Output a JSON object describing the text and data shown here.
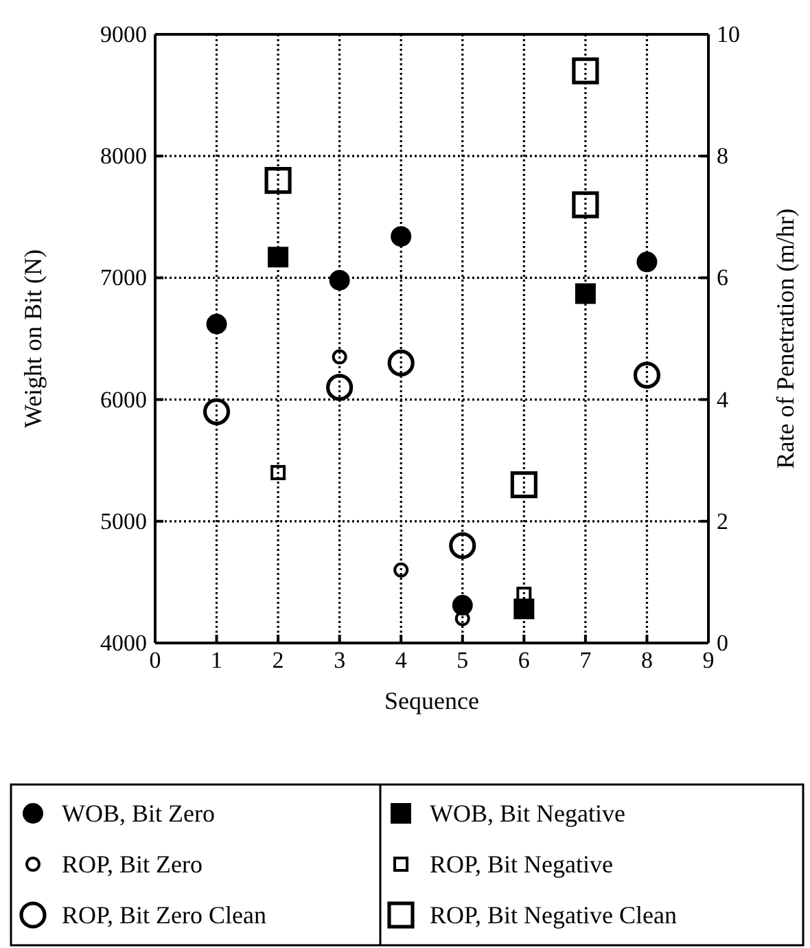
{
  "chart_data": {
    "type": "scatter",
    "xlabel": "Sequence",
    "ylabel": "Weight on Bit (N)",
    "y2label": "Rate of Penetration (m/hr)",
    "xlim": [
      0,
      9
    ],
    "xticks": [
      0,
      1,
      2,
      3,
      4,
      5,
      6,
      7,
      8,
      9
    ],
    "ylim": [
      4000,
      9000
    ],
    "yticks": [
      4000,
      5000,
      6000,
      7000,
      8000,
      9000
    ],
    "y2lim": [
      0,
      10
    ],
    "y2ticks": [
      0,
      2,
      4,
      6,
      8,
      10
    ],
    "grid": true,
    "legend": "bottom",
    "series": [
      {
        "name": "WOB, Bit Zero",
        "color": "#000000",
        "marker": "circle",
        "x": [
          1,
          3,
          4,
          5,
          8
        ],
        "values": [
          6620,
          6980,
          7340,
          4310,
          7130
        ]
      },
      {
        "name": "ROP, Bit Zero",
        "color": "#000000",
        "marker": "circle",
        "axis": "y2",
        "x": [
          3,
          4,
          5
        ],
        "values": [
          4.7,
          1.2,
          0.4
        ]
      },
      {
        "name": "ROP, Bit Zero Clean",
        "color": "#000000",
        "marker": "circle",
        "axis": "y2",
        "x": [
          1,
          3,
          4,
          5,
          8
        ],
        "values": [
          3.8,
          4.2,
          4.6,
          1.6,
          4.4
        ]
      },
      {
        "name": "WOB, Bit Negative",
        "color": "#000000",
        "marker": "square",
        "x": [
          2,
          6,
          7
        ],
        "values": [
          7170,
          4280,
          6870
        ]
      },
      {
        "name": "ROP, Bit Negative",
        "color": "#000000",
        "marker": "square",
        "axis": "y2",
        "x": [
          2,
          6
        ],
        "values": [
          2.8,
          0.8
        ]
      },
      {
        "name": "ROP, Bit Negative Clean",
        "color": "#000000",
        "marker": "square",
        "axis": "y2",
        "x": [
          2,
          6,
          7,
          7
        ],
        "values": [
          7.6,
          2.6,
          9.4,
          7.2
        ]
      }
    ]
  }
}
